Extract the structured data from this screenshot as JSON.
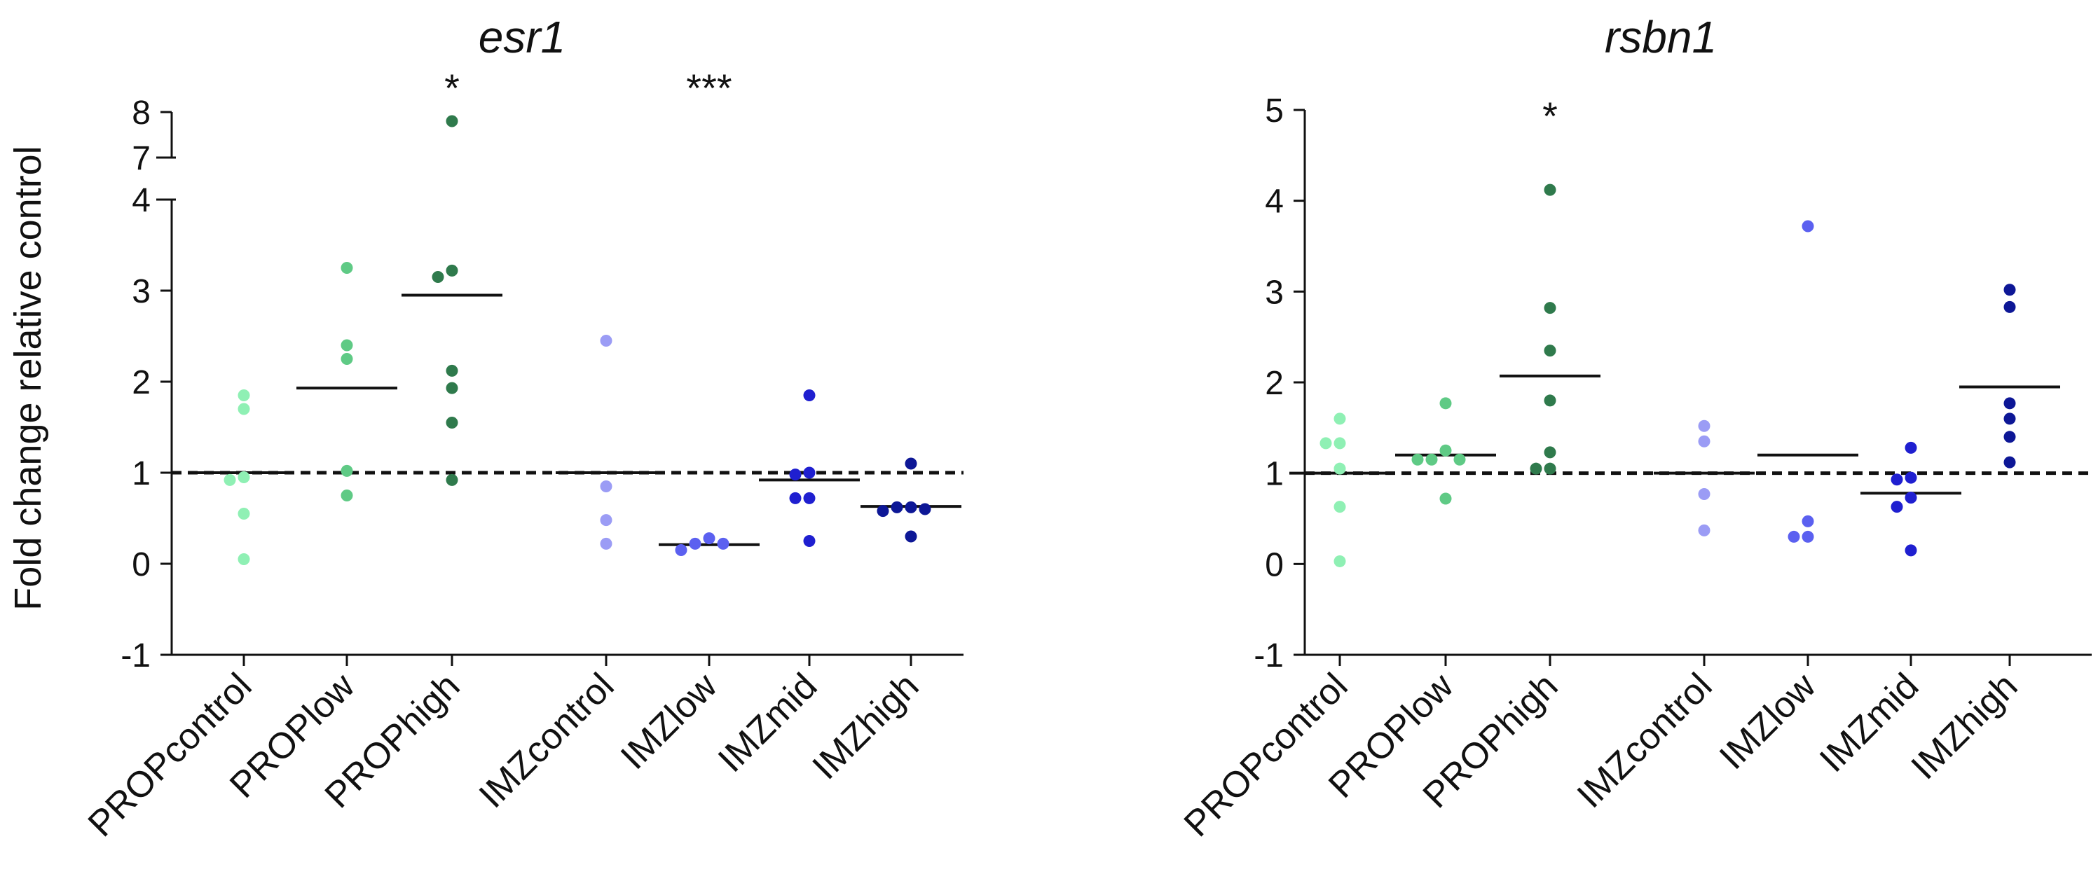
{
  "chart_data": [
    {
      "type": "scatter",
      "title": "esr1",
      "ylabel": "Fold change relative control",
      "xlabel": "",
      "ylim": [
        -1,
        8
      ],
      "y_axis_break": [
        4,
        7
      ],
      "yticks": [
        -1,
        0,
        1,
        2,
        3,
        4,
        7,
        8
      ],
      "reference_line": 1,
      "categories": [
        "PROPcontrol",
        "PROPlow",
        "PROPhigh",
        "IMZcontrol",
        "IMZlow",
        "IMZmid",
        "IMZhigh"
      ],
      "significance": [
        "",
        "",
        "*",
        "",
        "***",
        "",
        ""
      ],
      "colors": [
        "#8ff0b4",
        "#5fca85",
        "#2f7a4c",
        "#9b9cf5",
        "#5b60f0",
        "#1f1fd0",
        "#0d1796"
      ],
      "series": [
        {
          "values": [
            1.85,
            1.7,
            0.95,
            0.92,
            0.55,
            0.05
          ],
          "mean": 1.0
        },
        {
          "values": [
            3.25,
            2.4,
            2.25,
            1.02,
            0.75
          ],
          "mean": 1.93
        },
        {
          "values": [
            7.8,
            3.22,
            3.15,
            2.12,
            1.93,
            1.55,
            0.92
          ],
          "mean": 2.95
        },
        {
          "values": [
            2.45,
            0.85,
            0.48,
            0.22
          ],
          "mean": 1.0
        },
        {
          "values": [
            0.28,
            0.22,
            0.22,
            0.15
          ],
          "mean": 0.21
        },
        {
          "values": [
            1.85,
            1.0,
            0.98,
            0.72,
            0.72,
            0.25
          ],
          "mean": 0.92
        },
        {
          "values": [
            1.1,
            0.62,
            0.62,
            0.6,
            0.58,
            0.3
          ],
          "mean": 0.63
        }
      ]
    },
    {
      "type": "scatter",
      "title": "rsbn1",
      "ylabel": "",
      "xlabel": "",
      "ylim": [
        -1,
        5
      ],
      "yticks": [
        -1,
        0,
        1,
        2,
        3,
        4,
        5
      ],
      "reference_line": 1,
      "categories": [
        "PROPcontrol",
        "PROPlow",
        "PROPhigh",
        "IMZcontrol",
        "IMZlow",
        "IMZmid",
        "IMZhigh"
      ],
      "significance": [
        "",
        "",
        "*",
        "",
        "",
        "",
        ""
      ],
      "colors": [
        "#8ff0b4",
        "#5fca85",
        "#2f7a4c",
        "#9b9cf5",
        "#5b60f0",
        "#1f1fd0",
        "#0d1796"
      ],
      "series": [
        {
          "values": [
            1.6,
            1.33,
            1.33,
            1.05,
            0.63,
            0.03
          ],
          "mean": 1.0
        },
        {
          "values": [
            1.77,
            1.25,
            1.15,
            1.15,
            1.15,
            0.72
          ],
          "mean": 1.2
        },
        {
          "values": [
            4.12,
            2.82,
            2.35,
            1.8,
            1.23,
            1.05,
            1.05
          ],
          "mean": 2.07
        },
        {
          "values": [
            1.52,
            1.35,
            0.77,
            0.37
          ],
          "mean": 1.0
        },
        {
          "values": [
            3.72,
            0.47,
            0.3,
            0.3
          ],
          "mean": 1.2
        },
        {
          "values": [
            1.28,
            0.95,
            0.93,
            0.73,
            0.63,
            0.15
          ],
          "mean": 0.78
        },
        {
          "values": [
            3.02,
            2.83,
            1.77,
            1.6,
            1.4,
            1.12
          ],
          "mean": 1.95
        }
      ]
    }
  ]
}
